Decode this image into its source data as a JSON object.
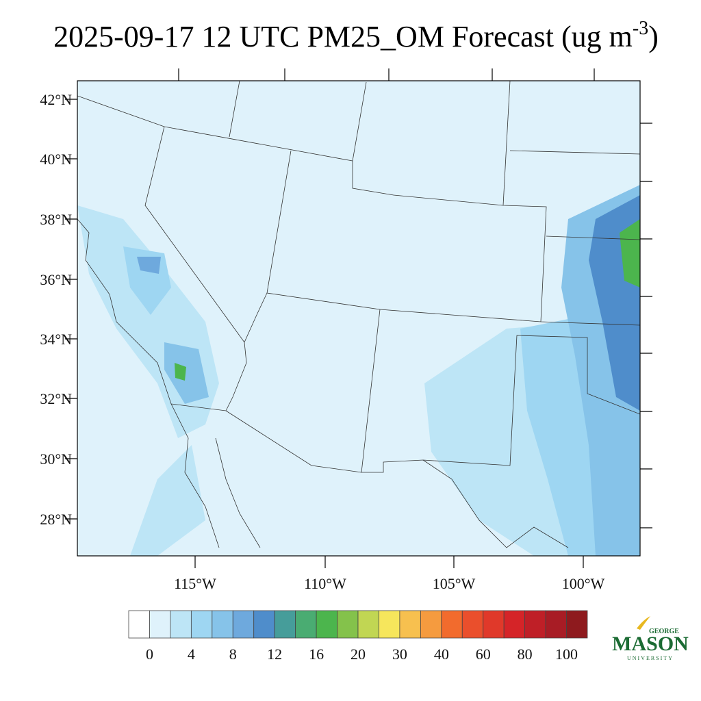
{
  "header": {
    "title": "2025-09-17 12 UTC PM25_OM Forecast (ug m",
    "title_superscript": "-3",
    "title_end": ")"
  },
  "map": {
    "lat_labels": [
      "42°N",
      "40°N",
      "38°N",
      "36°N",
      "34°N",
      "32°N",
      "30°N",
      "28°N"
    ],
    "lon_labels": [
      "115°W",
      "110°W",
      "105°W",
      "100°W"
    ]
  },
  "colorbar": {
    "colors": [
      "#ffffff",
      "#dff2fb",
      "#bde5f6",
      "#9ed6f2",
      "#86c3e9",
      "#6ea9dd",
      "#4f8dcb",
      "#469d9a",
      "#4aac72",
      "#4cb54d",
      "#84c24b",
      "#c1d653",
      "#f6e65c",
      "#f7c04f",
      "#f59b3f",
      "#f26b2d",
      "#ea4f2c",
      "#e0392a",
      "#d52428",
      "#bf1f27",
      "#a81c25",
      "#8e1a1e"
    ],
    "labels": [
      "0",
      "4",
      "8",
      "12",
      "16",
      "20",
      "30",
      "40",
      "60",
      "80",
      "100"
    ]
  },
  "logo": {
    "top": "GEORGE",
    "main": "MASON",
    "bottom": "UNIVERSITY"
  }
}
